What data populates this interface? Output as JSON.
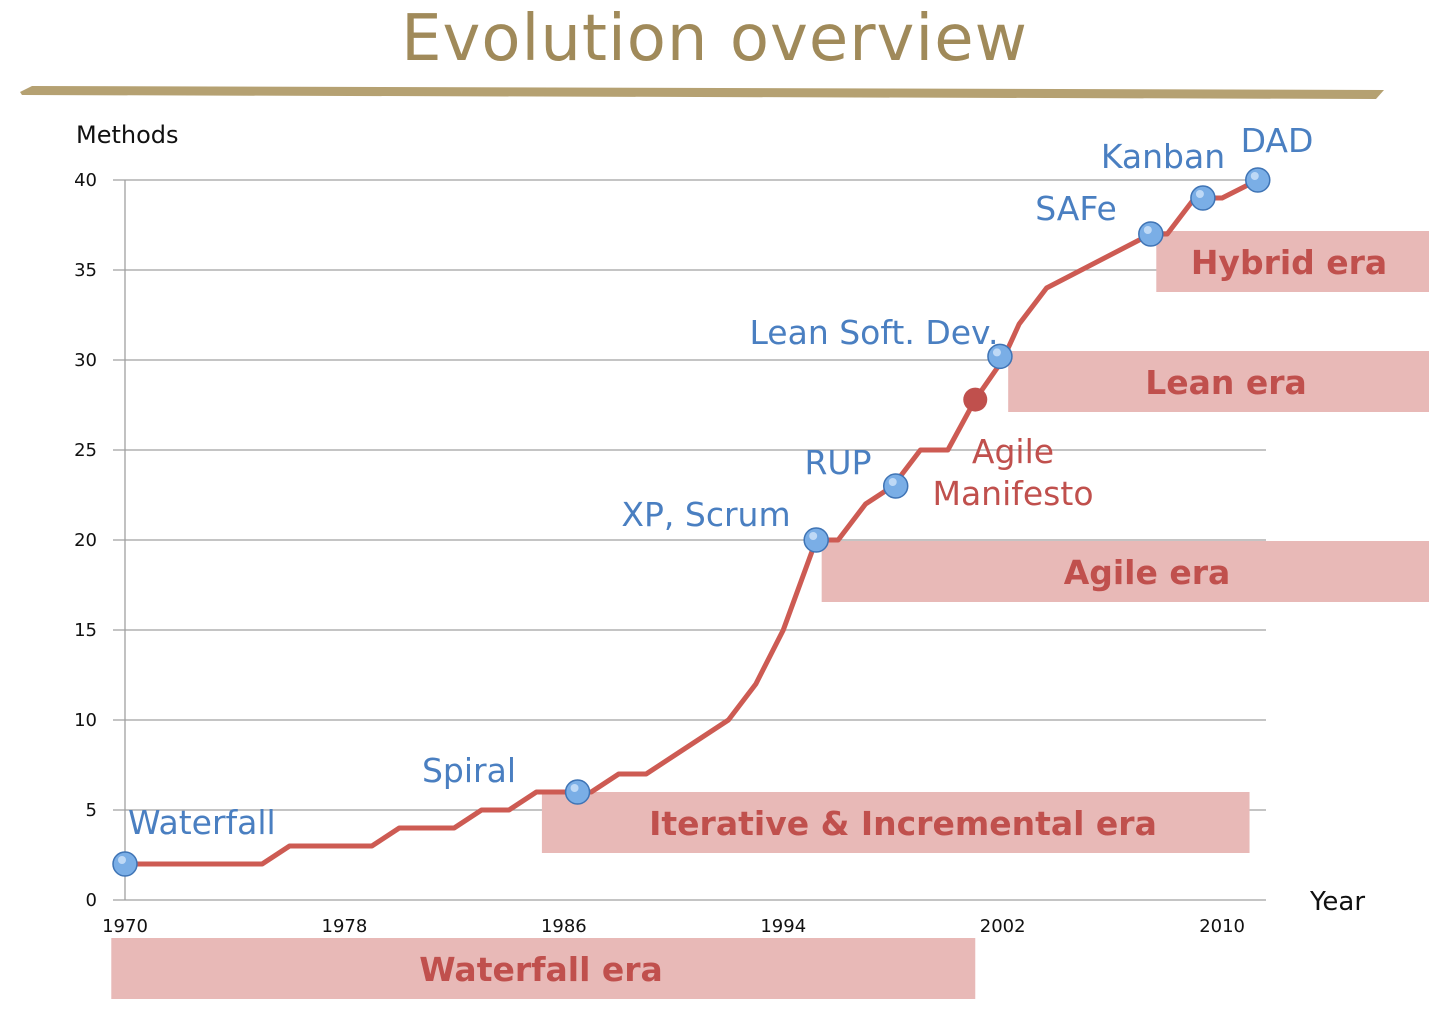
{
  "slide": {
    "title": "Evolution overview",
    "title_color": "#a08a5a",
    "rule_color": "#b5a172"
  },
  "chart_data": {
    "type": "line",
    "title": "",
    "xlabel": "Year",
    "ylabel": "Methods",
    "xlim": [
      1970,
      2011.6
    ],
    "ylim": [
      0,
      40
    ],
    "yticks": [
      0,
      5,
      10,
      15,
      20,
      25,
      30,
      35,
      40
    ],
    "xticks": [
      1970,
      1978,
      1986,
      1994,
      2002,
      2010
    ],
    "grid": true,
    "line_color": "#cd5b53",
    "series": [
      {
        "points": [
          [
            1970,
            2
          ],
          [
            1975,
            2
          ],
          [
            1976,
            3
          ],
          [
            1979,
            3
          ],
          [
            1980,
            4
          ],
          [
            1982,
            4
          ],
          [
            1983,
            5
          ],
          [
            1984,
            5
          ],
          [
            1985,
            6
          ],
          [
            1987,
            6
          ],
          [
            1988,
            7
          ],
          [
            1989,
            7
          ],
          [
            1990,
            8
          ],
          [
            1992,
            10
          ],
          [
            1993,
            12
          ],
          [
            1994,
            15
          ],
          [
            1995.2,
            20
          ],
          [
            1996,
            20
          ],
          [
            1997,
            22
          ],
          [
            1998,
            23
          ],
          [
            1999,
            25
          ],
          [
            2000,
            25
          ],
          [
            2001,
            27.8
          ],
          [
            2002,
            30
          ],
          [
            2002.6,
            32
          ],
          [
            2003.6,
            34
          ],
          [
            2007.4,
            37
          ],
          [
            2008,
            37
          ],
          [
            2009,
            39
          ],
          [
            2010,
            39
          ],
          [
            2011.3,
            40
          ]
        ]
      }
    ],
    "annotations": [
      {
        "label": "Waterfall",
        "x": 1970,
        "y": 2,
        "color": "#4a7fc1",
        "marker": "#7aaee6"
      },
      {
        "label": "Spiral",
        "x": 1986.5,
        "y": 6,
        "color": "#4a7fc1",
        "marker": "#7aaee6"
      },
      {
        "label": "XP, Scrum",
        "x": 1995.2,
        "y": 20,
        "color": "#4a7fc1",
        "marker": "#7aaee6"
      },
      {
        "label": "RUP",
        "x": 1998.1,
        "y": 23,
        "color": "#4a7fc1",
        "marker": "#7aaee6"
      },
      {
        "label": "Lean Soft. Dev.",
        "x": 2001.9,
        "y": 30.2,
        "color": "#4a7fc1",
        "marker": "#7aaee6"
      },
      {
        "label": "SAFe",
        "x": 2007.4,
        "y": 37,
        "color": "#4a7fc1",
        "marker": "#7aaee6"
      },
      {
        "label": "Kanban",
        "x": 2009.3,
        "y": 39,
        "color": "#4a7fc1",
        "marker": "#7aaee6"
      },
      {
        "label": "DAD",
        "x": 2011.3,
        "y": 40,
        "color": "#4a7fc1",
        "marker": "#7aaee6"
      }
    ],
    "agile_manifesto": {
      "label_line1": "Agile",
      "label_line2": "Manifesto",
      "x": 2001,
      "y": 27.8,
      "color": "#c0504d"
    },
    "eras": [
      {
        "label": "Waterfall era",
        "from": 1969.5,
        "to": 2001
      },
      {
        "label": "Iterative & Incremental era",
        "from": 1985.2,
        "to": 2011
      },
      {
        "label": "Agile era",
        "from": 1995.4,
        "to": 2022
      },
      {
        "label": "Lean era",
        "from": 2002.2,
        "to": 2022
      },
      {
        "label": "Hybrid era",
        "from": 2007.6,
        "to": 2022
      }
    ],
    "era_color": "#e8b9b7",
    "era_text_color": "#c0504d"
  }
}
